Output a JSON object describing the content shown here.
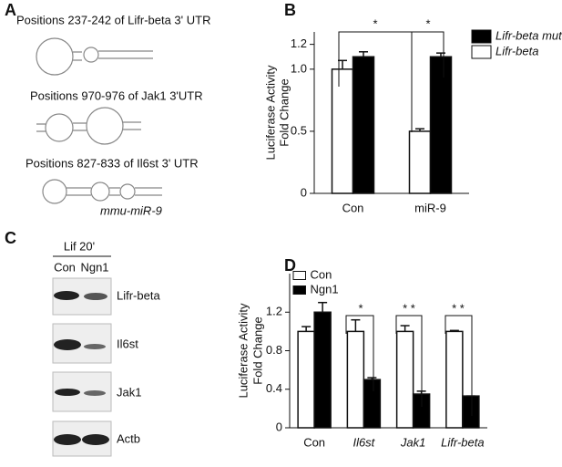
{
  "panel_labels": [
    "A",
    "B",
    "C",
    "D"
  ],
  "panel_a": {
    "lines": [
      "Positions 237-242 of Lifr-beta 3' UTR",
      "Positions 970-976 of Jak1 3'UTR",
      "Positions 827-833 of Il6st 3' UTR"
    ],
    "mirna": "mmu-miR-9"
  },
  "panel_c": {
    "treatment": "Lif 20'",
    "lanes": [
      "Con",
      "Ngn1"
    ],
    "proteins": [
      "Lifr-beta",
      "Il6st",
      "Jak1",
      "Actb"
    ]
  },
  "chart_data": [
    {
      "type": "bar",
      "ylabel": [
        "Luciferase Activity",
        "Fold Change"
      ],
      "categories": [
        "Con",
        "miR-9"
      ],
      "series": [
        {
          "name": "Lifr-beta",
          "color": "#ffffff",
          "values": [
            1.0,
            0.5
          ],
          "errors": [
            0.07,
            0.02
          ]
        },
        {
          "name": "Lifr-beta mut",
          "color": "#000000",
          "values": [
            1.1,
            1.1
          ],
          "errors": [
            0.04,
            0.03
          ]
        }
      ],
      "ylim": [
        0,
        1.3
      ],
      "yticks": [
        0,
        0.5,
        {
          "value": 1,
          "label": "1.0"
        },
        1.2
      ],
      "annotations": [
        "*",
        "*"
      ]
    },
    {
      "type": "bar",
      "ylabel": [
        "Luciferase Activity",
        "Fold Change"
      ],
      "categories": [
        "Con",
        "Il6st",
        "Jak1",
        "Lifr-beta"
      ],
      "series": [
        {
          "name": "Con",
          "color": "#ffffff",
          "values": [
            1.0,
            1.0,
            1.0,
            1.0
          ],
          "errors": [
            0.05,
            0.12,
            0.06,
            0.01
          ]
        },
        {
          "name": "Ngn1",
          "color": "#000000",
          "values": [
            1.2,
            0.5,
            0.35,
            0.33
          ],
          "errors": [
            0.1,
            0.02,
            0.03,
            0
          ]
        }
      ],
      "ylim": [
        0,
        1.6
      ],
      "yticks": [
        0,
        0.4,
        0.8,
        1.2
      ],
      "annotations": [
        "*",
        "* *",
        "* *"
      ]
    }
  ]
}
